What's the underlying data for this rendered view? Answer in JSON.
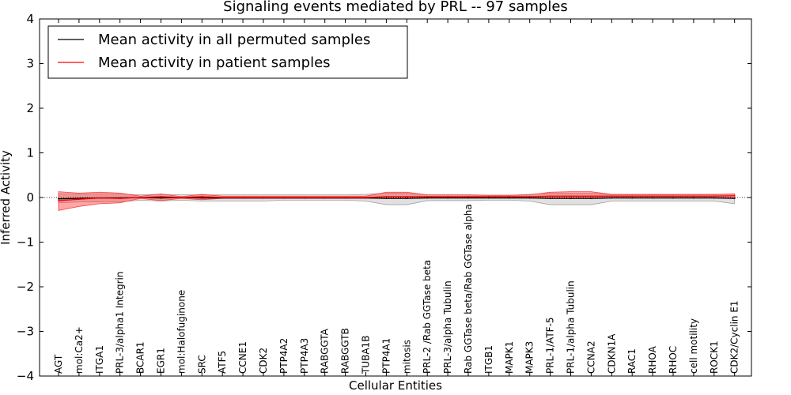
{
  "chart_data": {
    "type": "line",
    "title": "Signaling events mediated by PRL -- 97 samples",
    "xlabel": "Cellular Entities",
    "ylabel": "Inferred Activity",
    "ylim": [
      -4,
      4
    ],
    "yticks": [
      -4,
      -3,
      -2,
      -1,
      0,
      1,
      2,
      3,
      4
    ],
    "ytick_labels": [
      "−4",
      "−3",
      "−2",
      "−1",
      "0",
      "1",
      "2",
      "3",
      "4"
    ],
    "legend_position": "top-left",
    "categories": [
      "AGT",
      "mol:Ca2+",
      "ITGA1",
      "PRL-3/alpha1 Integrin",
      "BCAR1",
      "EGR1",
      "mol:Halofuginone",
      "SRC",
      "ATF5",
      "CCNE1",
      "CDK2",
      "PTP4A2",
      "PTP4A3",
      "RABGGTA",
      "RABGGTB",
      "TUBA1B",
      "PTP4A1",
      "mitosis",
      "PRL-2 /Rab GGTase beta",
      "PRL-3/alpha Tubulin",
      "Rab GGTase beta/Rab GGTase alpha",
      "ITGB1",
      "MAPK1",
      "MAPK3",
      "PRL-1/ATF-5",
      "PRL-1/alpha Tubulin",
      "CCNA2",
      "CDKN1A",
      "RAC1",
      "RHOA",
      "RHOC",
      "cell motility",
      "ROCK1",
      "CDK2/Cyclin E1"
    ],
    "series": [
      {
        "name": "Mean activity in all permuted samples",
        "color": "#000000",
        "values": [
          -0.03,
          -0.02,
          -0.01,
          -0.01,
          0.0,
          -0.01,
          0.0,
          -0.01,
          -0.01,
          -0.01,
          -0.01,
          -0.01,
          -0.01,
          -0.01,
          -0.01,
          -0.01,
          -0.02,
          -0.02,
          -0.01,
          -0.01,
          -0.01,
          -0.01,
          -0.01,
          -0.01,
          -0.02,
          -0.02,
          -0.02,
          -0.01,
          -0.01,
          -0.01,
          -0.01,
          -0.01,
          -0.01,
          -0.02
        ],
        "band_low": [
          -0.12,
          -0.1,
          -0.1,
          -0.1,
          -0.06,
          -0.08,
          -0.06,
          -0.08,
          -0.08,
          -0.08,
          -0.08,
          -0.06,
          -0.06,
          -0.06,
          -0.06,
          -0.08,
          -0.16,
          -0.16,
          -0.07,
          -0.07,
          -0.07,
          -0.06,
          -0.06,
          -0.08,
          -0.16,
          -0.16,
          -0.16,
          -0.08,
          -0.08,
          -0.08,
          -0.08,
          -0.08,
          -0.08,
          -0.14
        ],
        "band_high": [
          0.08,
          0.08,
          0.08,
          0.08,
          0.06,
          0.07,
          0.06,
          0.06,
          0.06,
          0.06,
          0.06,
          0.06,
          0.06,
          0.06,
          0.06,
          0.07,
          0.1,
          0.1,
          0.06,
          0.06,
          0.06,
          0.05,
          0.05,
          0.07,
          0.1,
          0.1,
          0.1,
          0.06,
          0.06,
          0.06,
          0.06,
          0.06,
          0.06,
          0.08
        ]
      },
      {
        "name": "Mean activity in patient samples",
        "color": "#ff0000",
        "values": [
          -0.07,
          -0.04,
          -0.01,
          -0.02,
          0.0,
          0.02,
          0.0,
          0.02,
          0.0,
          0.0,
          0.0,
          0.0,
          0.0,
          0.0,
          0.0,
          0.0,
          0.02,
          0.02,
          0.02,
          0.02,
          0.02,
          0.02,
          0.02,
          0.02,
          0.03,
          0.03,
          0.03,
          0.03,
          0.03,
          0.03,
          0.03,
          0.03,
          0.03,
          0.04
        ],
        "band_low": [
          -0.29,
          -0.2,
          -0.14,
          -0.12,
          -0.02,
          -0.07,
          -0.02,
          -0.05,
          -0.02,
          -0.02,
          -0.02,
          -0.02,
          -0.02,
          -0.02,
          -0.02,
          -0.02,
          -0.02,
          -0.02,
          -0.01,
          -0.01,
          -0.01,
          -0.01,
          -0.01,
          -0.01,
          -0.01,
          -0.01,
          -0.01,
          -0.01,
          -0.01,
          -0.01,
          -0.01,
          -0.01,
          -0.01,
          -0.01
        ],
        "band_high": [
          0.13,
          0.1,
          0.12,
          0.1,
          0.03,
          0.08,
          0.02,
          0.07,
          0.03,
          0.03,
          0.03,
          0.03,
          0.03,
          0.03,
          0.03,
          0.03,
          0.12,
          0.12,
          0.06,
          0.06,
          0.06,
          0.05,
          0.05,
          0.06,
          0.12,
          0.13,
          0.13,
          0.07,
          0.07,
          0.07,
          0.07,
          0.07,
          0.07,
          0.08
        ]
      }
    ]
  }
}
